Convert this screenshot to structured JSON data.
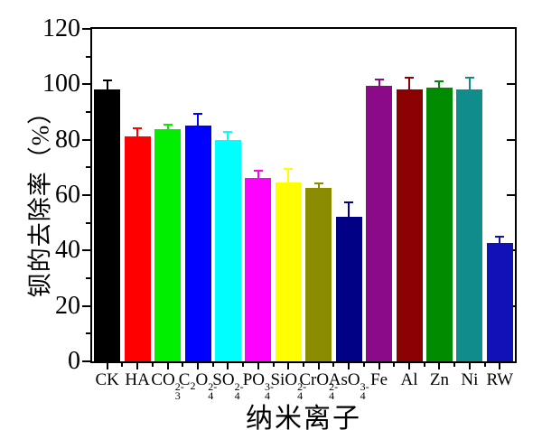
{
  "chart_data": {
    "type": "bar",
    "title": "",
    "xlabel": "纳米离子",
    "ylabel": "钡的去除率（%）",
    "ylim": [
      0,
      120
    ],
    "y_major_ticks": [
      0,
      20,
      40,
      60,
      80,
      100,
      120
    ],
    "y_minor_step": 10,
    "grid": false,
    "legend": "none",
    "error_bars": "upper whisker with cap, same color as bar",
    "categories": [
      "CK",
      "HA",
      "CO3 2-",
      "C2O4 2-",
      "SO4 2-",
      "PO4 3-",
      "SiO4 2-",
      "CrO4 2-",
      "AsO4 3-",
      "Fe",
      "Al",
      "Zn",
      "Ni",
      "RW"
    ],
    "bars": [
      {
        "label": "CK",
        "parts": [
          [
            "t",
            "CK"
          ]
        ],
        "value": 98.0,
        "error": 3.3,
        "color": "#000000"
      },
      {
        "label": "HA",
        "parts": [
          [
            "t",
            "HA"
          ]
        ],
        "value": 81.3,
        "error": 2.8,
        "color": "#FF0000"
      },
      {
        "label": "CO3 2-",
        "parts": [
          [
            "t",
            "CO"
          ],
          [
            "s",
            "3",
            "2-"
          ]
        ],
        "value": 83.8,
        "error": 1.7,
        "color": "#00EE00"
      },
      {
        "label": "C2O4 2-",
        "parts": [
          [
            "t",
            "C"
          ],
          [
            "b",
            "2"
          ],
          [
            "t",
            "O"
          ],
          [
            "s",
            "4",
            "2-"
          ]
        ],
        "value": 85.1,
        "error": 4.2,
        "color": "#0000FF"
      },
      {
        "label": "SO4 2-",
        "parts": [
          [
            "t",
            "SO"
          ],
          [
            "s",
            "4",
            "2-"
          ]
        ],
        "value": 79.9,
        "error": 2.8,
        "color": "#00FFFF"
      },
      {
        "label": "PO4 3-",
        "parts": [
          [
            "t",
            "PO"
          ],
          [
            "s",
            "4",
            "3-"
          ]
        ],
        "value": 66.2,
        "error": 2.7,
        "color": "#FF00FF"
      },
      {
        "label": "SiO4 2-",
        "parts": [
          [
            "t",
            "SiO"
          ],
          [
            "s",
            "4",
            "2-"
          ]
        ],
        "value": 64.5,
        "error": 5.0,
        "color": "#FFFF00"
      },
      {
        "label": "CrO4 2-",
        "parts": [
          [
            "t",
            "CrO"
          ],
          [
            "s",
            "4",
            "2-"
          ]
        ],
        "value": 62.7,
        "error": 1.7,
        "color": "#8B8B00"
      },
      {
        "label": "AsO4 3-",
        "parts": [
          [
            "t",
            "AsO"
          ],
          [
            "s",
            "4",
            "3-"
          ]
        ],
        "value": 52.3,
        "error": 5.0,
        "color": "#000085"
      },
      {
        "label": "Fe",
        "parts": [
          [
            "t",
            "Fe"
          ]
        ],
        "value": 99.4,
        "error": 2.2,
        "color": "#8A0A8A"
      },
      {
        "label": "Al",
        "parts": [
          [
            "t",
            "Al"
          ]
        ],
        "value": 98.3,
        "error": 4.2,
        "color": "#8B0000"
      },
      {
        "label": "Zn",
        "parts": [
          [
            "t",
            "Zn"
          ]
        ],
        "value": 98.7,
        "error": 2.4,
        "color": "#008B00"
      },
      {
        "label": "Ni",
        "parts": [
          [
            "t",
            "Ni"
          ]
        ],
        "value": 98.3,
        "error": 4.0,
        "color": "#108C8C"
      },
      {
        "label": "RW",
        "parts": [
          [
            "t",
            "RW"
          ]
        ],
        "value": 42.6,
        "error": 2.3,
        "color": "#1111B8"
      }
    ]
  }
}
